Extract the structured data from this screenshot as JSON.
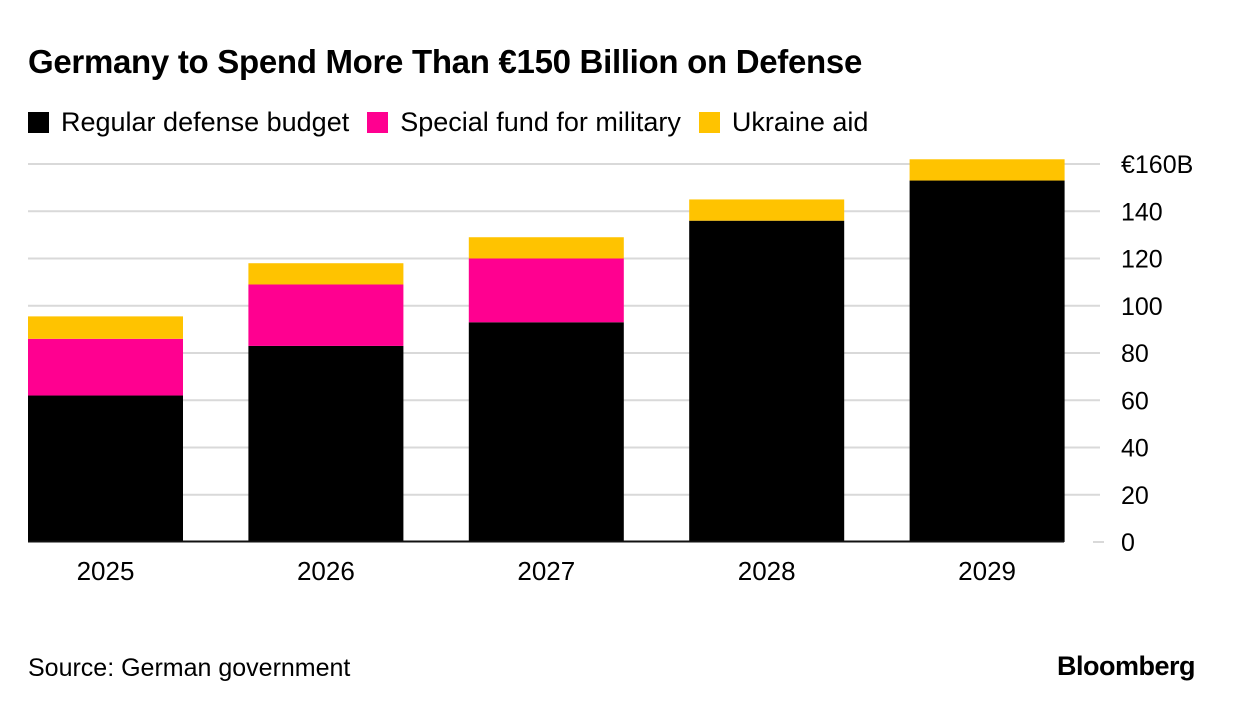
{
  "chart_data": {
    "type": "bar",
    "stacked": true,
    "title": "Germany to Spend More Than €150 Billion on Defense",
    "xlabel": "",
    "ylabel": "",
    "categories": [
      "2025",
      "2026",
      "2027",
      "2028",
      "2029"
    ],
    "series": [
      {
        "name": "Regular defense budget",
        "color": "#000000",
        "values": [
          62,
          83,
          93,
          136,
          153
        ]
      },
      {
        "name": "Special fund for military",
        "color": "#FF0090",
        "values": [
          24,
          26,
          27,
          0,
          0
        ]
      },
      {
        "name": "Ukraine aid",
        "color": "#FFC300",
        "values": [
          9.5,
          9,
          9,
          9,
          9
        ]
      }
    ],
    "ylim": [
      0,
      160
    ],
    "yticks": [
      0,
      20,
      40,
      60,
      80,
      100,
      120,
      140,
      160
    ],
    "ytick_labels": [
      "0",
      "20",
      "40",
      "60",
      "80",
      "100",
      "120",
      "140",
      "€160B"
    ],
    "y_axis_side": "right",
    "grid": true,
    "legend_position": "top-left"
  },
  "source": "Source: German government",
  "brand": "Bloomberg"
}
